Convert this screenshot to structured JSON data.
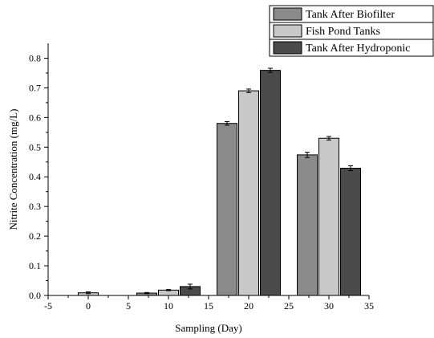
{
  "chart_data": {
    "type": "bar",
    "title": "",
    "xlabel": "Sampling (Day)",
    "ylabel": "Nitrite Concentration (mg/L)",
    "xlim": [
      -5,
      35
    ],
    "ylim": [
      0,
      0.85
    ],
    "x_ticks": [
      -5,
      0,
      5,
      10,
      15,
      20,
      25,
      30,
      35
    ],
    "y_ticks": [
      0.0,
      0.1,
      0.2,
      0.3,
      0.4,
      0.5,
      0.6,
      0.7,
      0.8
    ],
    "x_tick_labels": [
      "-5",
      "0",
      "5",
      "10",
      "15",
      "20",
      "25",
      "30",
      "35"
    ],
    "y_tick_labels": [
      "0.0",
      "0.1",
      "0.2",
      "0.3",
      "0.4",
      "0.5",
      "0.6",
      "0.7",
      "0.8"
    ],
    "groups_x": [
      0,
      10,
      20,
      30
    ],
    "bar_width_days": 2.5,
    "series": [
      {
        "name": "Tank After Biofilter",
        "color": "#8a8a8a",
        "values": [
          null,
          0.008,
          0.58,
          0.474
        ],
        "errors": [
          null,
          0.002,
          0.006,
          0.009
        ],
        "offset": -2.7
      },
      {
        "name": "Fish Pond Tanks",
        "color": "#c8c8c8",
        "values": [
          0.009,
          0.018,
          0.69,
          0.53
        ],
        "errors": [
          0.003,
          0.002,
          0.006,
          0.006
        ],
        "offset": 0
      },
      {
        "name": "Tank After Hydroponic",
        "color": "#4a4a4a",
        "values": [
          null,
          0.03,
          0.759,
          0.429
        ],
        "errors": [
          null,
          0.008,
          0.007,
          0.008
        ],
        "offset": 2.7
      }
    ],
    "legend_position": "top-right",
    "grid": false
  }
}
